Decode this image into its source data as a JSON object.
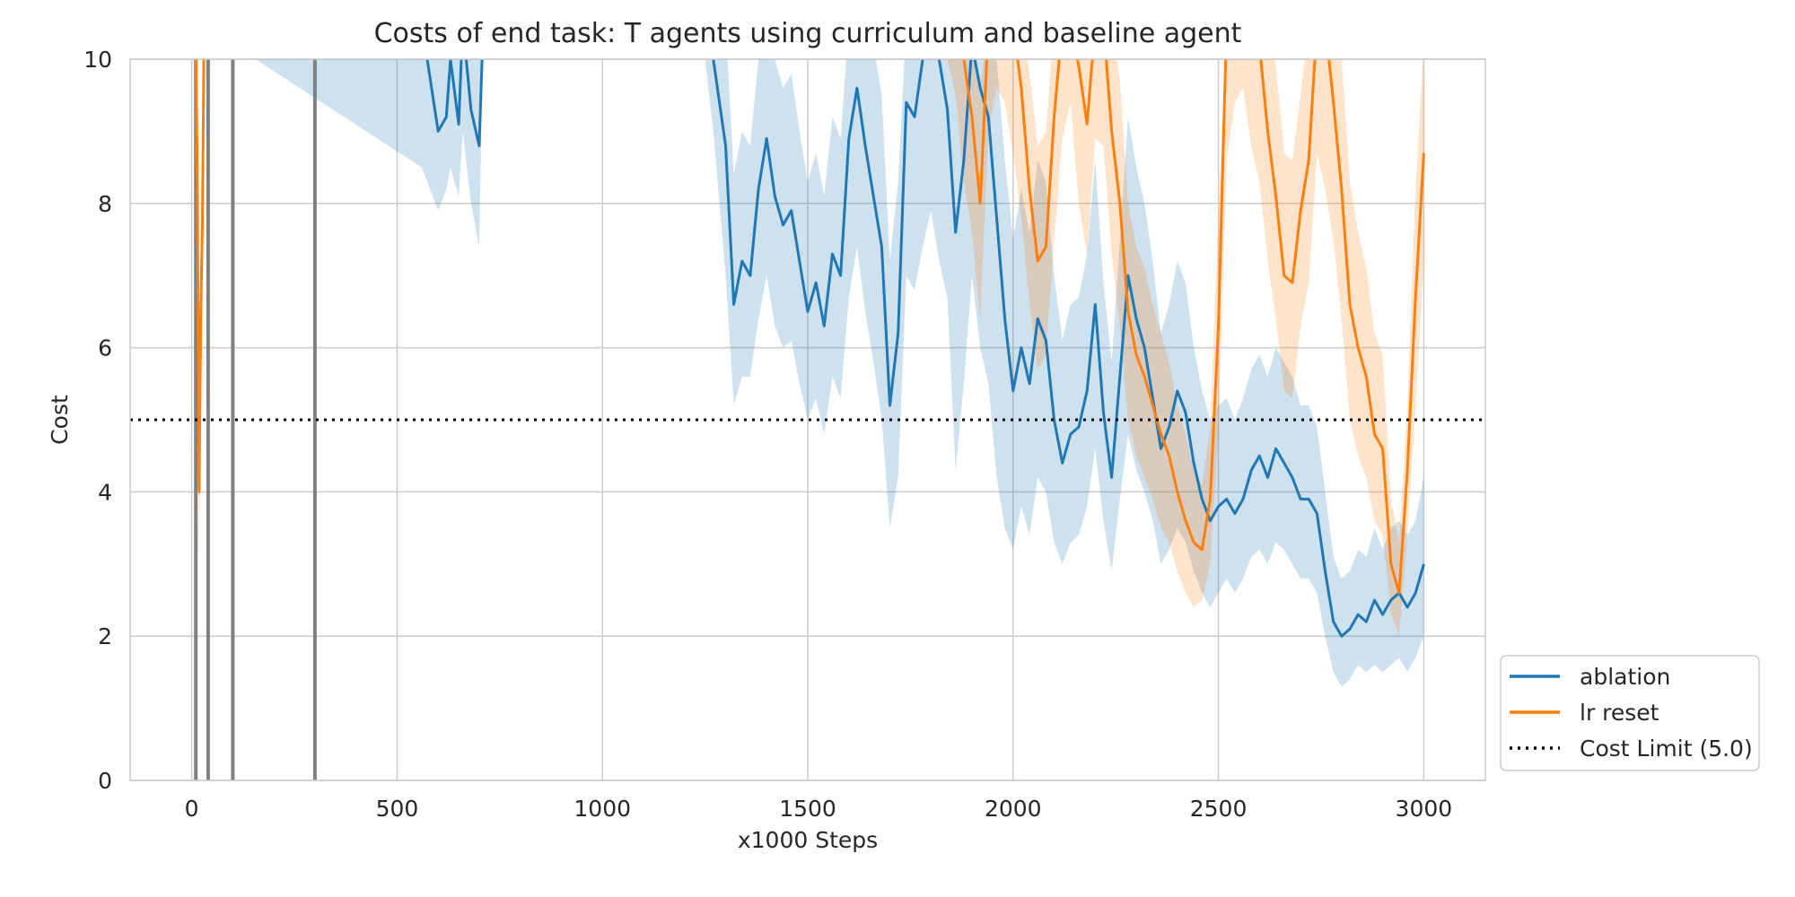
{
  "chart_data": {
    "type": "line",
    "title": "Costs of end task: T agents using curriculum and baseline agent",
    "xlabel": "x1000 Steps",
    "ylabel": "Cost",
    "xlim": [
      -150,
      3150
    ],
    "ylim": [
      0,
      10
    ],
    "xticks": [
      "0",
      "500",
      "1000",
      "1500",
      "2000",
      "2500",
      "3000"
    ],
    "yticks": [
      "0",
      "2",
      "4",
      "6",
      "8",
      "10"
    ],
    "grid": true,
    "legend_position": "outside-bottom-right",
    "curriculum_switch_steps": [
      10,
      40,
      100,
      300
    ],
    "colors": {
      "ablation": "#1f77b4",
      "lr_reset": "#ff7f0e",
      "vline": "#808080",
      "grid": "#cccccc",
      "limit": "#000000"
    },
    "cost_limit": {
      "name": "Cost Limit (5.0)",
      "value": 5.0
    },
    "series": [
      {
        "name": "ablation",
        "color": "#1f77b4",
        "x": [
          0,
          10,
          20,
          560,
          600,
          620,
          630,
          650,
          660,
          680,
          700,
          710,
          1240,
          1270,
          1300,
          1320,
          1340,
          1360,
          1380,
          1400,
          1420,
          1440,
          1460,
          1480,
          1500,
          1520,
          1540,
          1560,
          1580,
          1600,
          1620,
          1640,
          1660,
          1680,
          1700,
          1720,
          1740,
          1760,
          1780,
          1800,
          1820,
          1840,
          1860,
          1880,
          1900,
          1920,
          1940,
          1960,
          1980,
          2000,
          2020,
          2040,
          2060,
          2080,
          2100,
          2120,
          2140,
          2160,
          2180,
          2200,
          2220,
          2240,
          2260,
          2280,
          2300,
          2320,
          2340,
          2360,
          2380,
          2400,
          2420,
          2440,
          2460,
          2480,
          2500,
          2520,
          2540,
          2560,
          2580,
          2600,
          2620,
          2640,
          2660,
          2680,
          2700,
          2720,
          2740,
          2760,
          2780,
          2800,
          2820,
          2840,
          2860,
          2880,
          2900,
          2920,
          2940,
          2960,
          2980,
          3000
        ],
        "y": [
          10.5,
          10.5,
          10.5,
          10.5,
          9.0,
          9.2,
          10.0,
          9.1,
          10.5,
          9.3,
          8.8,
          10.5,
          10.5,
          10.0,
          8.8,
          6.6,
          7.2,
          7.0,
          8.2,
          8.9,
          8.1,
          7.7,
          7.9,
          7.2,
          6.5,
          6.9,
          6.3,
          7.3,
          7.0,
          8.9,
          9.6,
          8.8,
          8.1,
          7.4,
          5.2,
          6.2,
          9.4,
          9.2,
          10.0,
          10.4,
          10.0,
          9.3,
          7.6,
          8.6,
          10.2,
          9.6,
          9.2,
          7.8,
          6.4,
          5.4,
          6.0,
          5.5,
          6.4,
          6.1,
          5.0,
          4.4,
          4.8,
          4.9,
          5.4,
          6.6,
          5.1,
          4.2,
          5.6,
          7.0,
          6.4,
          6.0,
          5.3,
          4.6,
          4.9,
          5.4,
          5.1,
          4.4,
          3.9,
          3.6,
          3.8,
          3.9,
          3.7,
          3.9,
          4.3,
          4.5,
          4.2,
          4.6,
          4.4,
          4.2,
          3.9,
          3.9,
          3.7,
          2.9,
          2.2,
          2.0,
          2.1,
          2.3,
          2.2,
          2.5,
          2.3,
          2.5,
          2.6,
          2.4,
          2.6,
          3.0
        ],
        "lower": [
          10.5,
          10.5,
          10.5,
          8.5,
          7.9,
          8.2,
          8.5,
          8.1,
          9.0,
          8.0,
          7.4,
          10.5,
          10.5,
          9.0,
          7.0,
          5.2,
          5.6,
          5.6,
          6.4,
          7.0,
          6.3,
          6.0,
          6.1,
          5.5,
          5.0,
          5.3,
          4.8,
          5.6,
          5.3,
          6.7,
          7.4,
          6.5,
          5.8,
          5.0,
          3.5,
          4.2,
          7.0,
          6.8,
          7.4,
          7.9,
          7.2,
          6.7,
          4.3,
          5.5,
          7.0,
          6.0,
          5.5,
          4.2,
          3.5,
          3.2,
          3.8,
          3.4,
          4.2,
          4.0,
          3.3,
          3.0,
          3.3,
          3.4,
          3.8,
          4.6,
          3.6,
          2.9,
          3.9,
          4.8,
          4.3,
          4.0,
          3.6,
          3.0,
          3.2,
          3.5,
          3.3,
          2.9,
          2.6,
          2.4,
          2.6,
          2.8,
          2.6,
          2.8,
          3.1,
          3.2,
          3.0,
          3.3,
          3.2,
          3.0,
          2.8,
          2.8,
          2.6,
          2.0,
          1.5,
          1.3,
          1.4,
          1.6,
          1.5,
          1.6,
          1.5,
          1.6,
          1.7,
          1.5,
          1.7,
          2.0
        ],
        "upper": [
          10.5,
          10.5,
          10.5,
          10.5,
          10.5,
          10.5,
          10.5,
          10.5,
          10.5,
          10.5,
          10.5,
          10.5,
          10.5,
          10.5,
          10.5,
          8.4,
          9.0,
          8.8,
          10.0,
          10.5,
          10.0,
          9.6,
          9.8,
          9.0,
          8.3,
          8.7,
          8.1,
          9.2,
          8.9,
          10.5,
          10.5,
          10.5,
          10.2,
          9.5,
          7.2,
          8.3,
          10.5,
          10.5,
          10.5,
          10.5,
          10.5,
          10.5,
          10.0,
          10.5,
          10.5,
          10.5,
          10.5,
          10.0,
          8.6,
          7.5,
          8.2,
          7.6,
          8.6,
          8.3,
          7.0,
          6.1,
          6.6,
          6.7,
          7.3,
          8.6,
          6.9,
          5.8,
          7.5,
          9.2,
          8.5,
          8.0,
          7.2,
          6.2,
          6.6,
          7.2,
          6.9,
          6.0,
          5.4,
          5.0,
          5.2,
          5.3,
          5.0,
          5.3,
          5.7,
          5.9,
          5.6,
          6.0,
          5.8,
          5.6,
          5.2,
          5.2,
          4.9,
          4.0,
          3.1,
          2.8,
          2.9,
          3.2,
          3.1,
          3.5,
          3.2,
          3.5,
          3.6,
          3.4,
          3.6,
          4.2
        ]
      },
      {
        "name": "lr reset",
        "color": "#ff7f0e",
        "x": [
          0,
          10,
          14,
          18,
          22,
          26,
          30,
          1580,
          1620,
          1660,
          1700,
          1740,
          1780,
          1820,
          1860,
          1880,
          1900,
          1920,
          1940,
          1960,
          1980,
          2000,
          2020,
          2040,
          2060,
          2080,
          2100,
          2120,
          2140,
          2160,
          2180,
          2200,
          2220,
          2240,
          2260,
          2280,
          2300,
          2320,
          2340,
          2360,
          2380,
          2400,
          2420,
          2440,
          2460,
          2480,
          2500,
          2520,
          2540,
          2560,
          2580,
          2600,
          2620,
          2640,
          2660,
          2680,
          2700,
          2720,
          2740,
          2760,
          2780,
          2800,
          2820,
          2840,
          2860,
          2880,
          2900,
          2920,
          2940,
          2960,
          2980,
          3000
        ],
        "y": [
          10.5,
          10.5,
          8.0,
          4.0,
          6.5,
          7.7,
          10.5,
          10.5,
          10.5,
          10.5,
          10.5,
          10.5,
          10.5,
          10.5,
          10.5,
          10.0,
          9.2,
          8.0,
          10.5,
          10.5,
          10.5,
          10.5,
          9.6,
          8.2,
          7.2,
          7.4,
          9.2,
          10.5,
          10.5,
          9.9,
          9.1,
          10.5,
          10.5,
          9.0,
          8.0,
          6.5,
          5.9,
          5.6,
          5.2,
          4.8,
          4.5,
          4.0,
          3.6,
          3.3,
          3.2,
          3.9,
          6.3,
          10.5,
          10.5,
          10.5,
          10.5,
          10.2,
          9.0,
          8.1,
          7.0,
          6.9,
          7.9,
          8.6,
          10.5,
          10.5,
          9.4,
          8.2,
          6.6,
          6.0,
          5.6,
          4.8,
          4.6,
          3.0,
          2.6,
          4.3,
          6.7,
          8.7
        ],
        "lower": [
          10.5,
          10.5,
          6.5,
          3.0,
          5.0,
          6.2,
          10.5,
          10.5,
          10.5,
          10.5,
          10.5,
          10.5,
          10.5,
          10.5,
          9.5,
          8.3,
          7.6,
          6.4,
          9.0,
          9.6,
          9.4,
          8.7,
          7.8,
          6.6,
          5.7,
          5.9,
          7.5,
          8.9,
          9.4,
          8.0,
          7.3,
          8.9,
          8.8,
          7.3,
          6.3,
          5.0,
          4.5,
          4.2,
          3.9,
          3.5,
          3.3,
          2.9,
          2.6,
          2.4,
          2.5,
          3.0,
          4.8,
          8.6,
          9.4,
          9.6,
          8.8,
          8.3,
          7.2,
          6.4,
          5.4,
          5.3,
          6.3,
          6.9,
          8.7,
          8.2,
          7.5,
          6.4,
          5.0,
          4.5,
          4.2,
          3.6,
          3.4,
          2.3,
          2.0,
          3.4,
          5.2,
          7.2
        ],
        "upper": [
          10.5,
          10.5,
          9.5,
          5.2,
          8.0,
          9.2,
          10.5,
          10.5,
          10.5,
          10.5,
          10.5,
          10.5,
          10.5,
          10.5,
          10.5,
          10.5,
          10.5,
          9.6,
          10.5,
          10.5,
          10.5,
          10.5,
          10.5,
          9.8,
          8.8,
          9.0,
          10.5,
          10.5,
          10.5,
          10.5,
          10.5,
          10.5,
          10.5,
          10.5,
          9.7,
          8.0,
          7.4,
          7.1,
          6.6,
          6.2,
          5.8,
          5.2,
          4.8,
          4.3,
          4.1,
          4.9,
          7.8,
          10.5,
          10.5,
          10.5,
          10.5,
          10.5,
          10.5,
          9.9,
          8.7,
          8.6,
          9.5,
          10.5,
          10.5,
          10.5,
          10.5,
          10.0,
          8.3,
          7.6,
          7.1,
          6.2,
          5.9,
          3.9,
          3.3,
          5.2,
          8.2,
          10.2
        ]
      }
    ]
  }
}
